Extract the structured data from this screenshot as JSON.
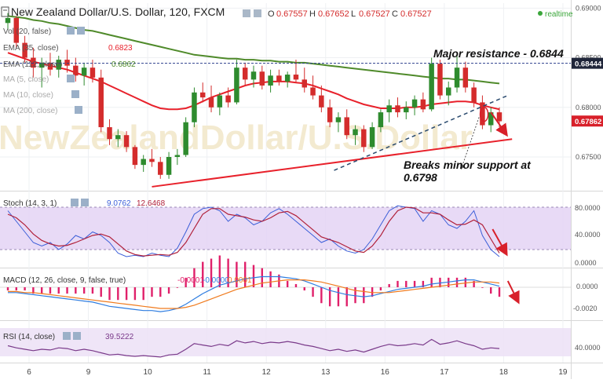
{
  "header": {
    "symbol": "New Zealand Dollar/U.S. Dollar, 120, FXCM",
    "ohlc_labels": [
      "O",
      "H",
      "L",
      "C"
    ],
    "ohlc_values": [
      "0.67557",
      "0.67652",
      "0.67527",
      "0.67527"
    ],
    "realtime_label": "realtime"
  },
  "legend": [
    {
      "label": "Vol (20, false)",
      "value": ""
    },
    {
      "label": "EMA (35, close)",
      "value": "0.6823"
    },
    {
      "label": "EMA (112, close)",
      "value": "0.6862"
    },
    {
      "label": "MA (5, close)",
      "value": ""
    },
    {
      "label": "MA (10, close)",
      "value": ""
    },
    {
      "label": "MA (200, close)",
      "value": ""
    }
  ],
  "annotations": {
    "resistance": "Major resistance - 0.6844",
    "support_line1": "Breaks minor support at",
    "support_line2": "0.6798"
  },
  "watermark": "NewZealandDollar/U.S.Dollar",
  "price_badges": {
    "resistance": "0.68444",
    "last": "0.67862"
  },
  "panes": {
    "stoch": {
      "label": "Stoch (14, 3, 1)",
      "values": [
        "9.0762",
        "12.6468"
      ],
      "ticks": [
        "80.0000",
        "40.0000",
        "0.0000"
      ]
    },
    "macd": {
      "label": "MACD (12, 26, close, 9, false, true)",
      "values": [
        "-0.0001",
        "-0.0000",
        "0.0001"
      ],
      "ticks": [
        "0.0000",
        "-0.0020"
      ]
    },
    "rsi": {
      "label": "RSI (14, close)",
      "values": [
        "39.5222"
      ],
      "ticks": [
        "40.0000"
      ]
    }
  },
  "colors": {
    "candle_up": "#2e8b2e",
    "candle_down": "#d42c2c",
    "ema35": "#e8212b",
    "ema112": "#4f8a2a",
    "trendline": "#e8212b",
    "support": "#2a4a6e",
    "stoch_band": "#e4d4f4",
    "rsi_band": "#ece0f6",
    "stoch_k": "#3b5ed8",
    "stoch_d": "#b0203a",
    "macd_line": "#2f7de0",
    "signal_line": "#f07b1e",
    "hist": "#e0206a",
    "rsi_line": "#7a3a8a",
    "badge_bg": "#d8202a"
  },
  "chart_data": {
    "type": "candlestick",
    "x_ticks": [
      "6",
      "9",
      "10",
      "11",
      "12",
      "13",
      "16",
      "17",
      "18",
      "19"
    ],
    "y_ticks": [
      "0.69000",
      "0.68500",
      "0.68000",
      "0.67500"
    ],
    "ylim": [
      0.6716,
      0.6905
    ],
    "resistance_level": 0.68444,
    "last_price": 0.67862,
    "candles": [
      [
        0.6885,
        0.6895,
        0.6878,
        0.689
      ],
      [
        0.689,
        0.6892,
        0.686,
        0.6865
      ],
      [
        0.6865,
        0.6872,
        0.6845,
        0.685
      ],
      [
        0.685,
        0.686,
        0.683,
        0.684
      ],
      [
        0.684,
        0.685,
        0.682,
        0.6845
      ],
      [
        0.6845,
        0.6855,
        0.6832,
        0.6838
      ],
      [
        0.6838,
        0.6852,
        0.683,
        0.6848
      ],
      [
        0.6848,
        0.6858,
        0.6835,
        0.6842
      ],
      [
        0.6842,
        0.685,
        0.6826,
        0.6832
      ],
      [
        0.6832,
        0.6845,
        0.6822,
        0.684
      ],
      [
        0.684,
        0.6848,
        0.6825,
        0.683
      ],
      [
        0.683,
        0.6838,
        0.6775,
        0.678
      ],
      [
        0.678,
        0.6788,
        0.6762,
        0.6768
      ],
      [
        0.6768,
        0.6778,
        0.676,
        0.6772
      ],
      [
        0.6772,
        0.6776,
        0.6755,
        0.676
      ],
      [
        0.676,
        0.6762,
        0.6738,
        0.6742
      ],
      [
        0.6742,
        0.6752,
        0.6735,
        0.6748
      ],
      [
        0.6748,
        0.6758,
        0.674,
        0.6745
      ],
      [
        0.6745,
        0.675,
        0.6728,
        0.6732
      ],
      [
        0.6732,
        0.6755,
        0.6728,
        0.675
      ],
      [
        0.675,
        0.6758,
        0.6742,
        0.6752
      ],
      [
        0.6752,
        0.679,
        0.675,
        0.6785
      ],
      [
        0.6785,
        0.682,
        0.678,
        0.6815
      ],
      [
        0.6815,
        0.6825,
        0.6805,
        0.681
      ],
      [
        0.681,
        0.6822,
        0.6795,
        0.68
      ],
      [
        0.68,
        0.6815,
        0.6792,
        0.6812
      ],
      [
        0.6812,
        0.682,
        0.68,
        0.6805
      ],
      [
        0.6805,
        0.6848,
        0.6803,
        0.684
      ],
      [
        0.684,
        0.6845,
        0.6822,
        0.6828
      ],
      [
        0.6828,
        0.6842,
        0.682,
        0.6836
      ],
      [
        0.6836,
        0.6842,
        0.6818,
        0.6822
      ],
      [
        0.6822,
        0.6838,
        0.6815,
        0.6832
      ],
      [
        0.6832,
        0.6838,
        0.6822,
        0.6826
      ],
      [
        0.6826,
        0.6836,
        0.682,
        0.6833
      ],
      [
        0.6833,
        0.6848,
        0.6825,
        0.6828
      ],
      [
        0.6828,
        0.684,
        0.6815,
        0.682
      ],
      [
        0.682,
        0.6832,
        0.6808,
        0.6812
      ],
      [
        0.6812,
        0.6822,
        0.6795,
        0.68
      ],
      [
        0.68,
        0.6808,
        0.678,
        0.6785
      ],
      [
        0.6785,
        0.6795,
        0.6775,
        0.679
      ],
      [
        0.679,
        0.6798,
        0.6768,
        0.6772
      ],
      [
        0.6772,
        0.6782,
        0.6762,
        0.6778
      ],
      [
        0.6778,
        0.6782,
        0.6755,
        0.676
      ],
      [
        0.676,
        0.6785,
        0.6758,
        0.678
      ],
      [
        0.678,
        0.6798,
        0.6775,
        0.6795
      ],
      [
        0.6795,
        0.6808,
        0.6785,
        0.6802
      ],
      [
        0.6802,
        0.681,
        0.679,
        0.6795
      ],
      [
        0.6795,
        0.6806,
        0.6788,
        0.68
      ],
      [
        0.68,
        0.6812,
        0.6792,
        0.6808
      ],
      [
        0.6808,
        0.6815,
        0.6795,
        0.6798
      ],
      [
        0.6798,
        0.685,
        0.6796,
        0.6844
      ],
      [
        0.6844,
        0.6848,
        0.6808,
        0.6812
      ],
      [
        0.6812,
        0.6826,
        0.6802,
        0.682
      ],
      [
        0.682,
        0.6852,
        0.6815,
        0.684
      ],
      [
        0.684,
        0.6846,
        0.6815,
        0.682
      ],
      [
        0.682,
        0.6825,
        0.68,
        0.6805
      ],
      [
        0.6805,
        0.6812,
        0.6778,
        0.6782
      ],
      [
        0.6782,
        0.68,
        0.6775,
        0.6795
      ],
      [
        0.6795,
        0.68,
        0.678,
        0.6786
      ]
    ],
    "ema35": [
      0.6855,
      0.6852,
      0.6849,
      0.6846,
      0.6844,
      0.6842,
      0.684,
      0.6838,
      0.6835,
      0.6832,
      0.6829,
      0.6826,
      0.6822,
      0.6818,
      0.6814,
      0.681,
      0.6806,
      0.6802,
      0.6799,
      0.6798,
      0.6798,
      0.6799,
      0.6802,
      0.6806,
      0.681,
      0.6813,
      0.6816,
      0.6819,
      0.6822,
      0.6824,
      0.6825,
      0.6826,
      0.6826,
      0.6826,
      0.6825,
      0.6824,
      0.6822,
      0.6819,
      0.6816,
      0.6813,
      0.6809,
      0.6806,
      0.6803,
      0.6801,
      0.6799,
      0.6799,
      0.6799,
      0.68,
      0.68,
      0.6801,
      0.6803,
      0.6804,
      0.6805,
      0.6806,
      0.6806,
      0.6805,
      0.6802,
      0.68,
      0.6798
    ],
    "ema112": [
      0.6892,
      0.6891,
      0.689,
      0.6888,
      0.6887,
      0.6885,
      0.6884,
      0.6882,
      0.688,
      0.6878,
      0.6877,
      0.6875,
      0.6873,
      0.6871,
      0.6869,
      0.6867,
      0.6865,
      0.6863,
      0.6861,
      0.6859,
      0.6857,
      0.6855,
      0.6853,
      0.6852,
      0.6851,
      0.685,
      0.6849,
      0.6849,
      0.6848,
      0.6848,
      0.6847,
      0.6847,
      0.6846,
      0.6846,
      0.6845,
      0.6845,
      0.6844,
      0.6843,
      0.6842,
      0.6841,
      0.684,
      0.6839,
      0.6838,
      0.6837,
      0.6836,
      0.6835,
      0.6834,
      0.6833,
      0.6832,
      0.6831,
      0.683,
      0.6829,
      0.6829,
      0.6828,
      0.6828,
      0.6827,
      0.6826,
      0.6825,
      0.6824
    ],
    "stoch_k": [
      75,
      60,
      45,
      30,
      25,
      30,
      20,
      28,
      40,
      35,
      45,
      40,
      30,
      15,
      10,
      12,
      10,
      15,
      12,
      10,
      22,
      45,
      70,
      78,
      80,
      75,
      60,
      70,
      65,
      55,
      60,
      72,
      78,
      70,
      60,
      50,
      40,
      30,
      35,
      25,
      18,
      15,
      20,
      35,
      55,
      75,
      82,
      80,
      78,
      60,
      75,
      70,
      55,
      50,
      60,
      75,
      40,
      20,
      10
    ],
    "stoch_d": [
      70,
      65,
      55,
      42,
      33,
      28,
      25,
      26,
      30,
      35,
      40,
      42,
      38,
      28,
      18,
      13,
      11,
      12,
      13,
      12,
      16,
      30,
      50,
      70,
      78,
      78,
      70,
      68,
      66,
      62,
      60,
      65,
      72,
      74,
      68,
      58,
      48,
      38,
      34,
      30,
      24,
      18,
      16,
      25,
      40,
      60,
      75,
      80,
      79,
      72,
      72,
      70,
      62,
      55,
      56,
      62,
      55,
      35,
      15
    ],
    "macd": [
      -0.0005,
      -0.0005,
      -0.0006,
      -0.0007,
      -0.0008,
      -0.0009,
      -0.001,
      -0.0011,
      -0.0012,
      -0.0013,
      -0.0014,
      -0.0016,
      -0.0018,
      -0.0019,
      -0.002,
      -0.0021,
      -0.0022,
      -0.0022,
      -0.0023,
      -0.0022,
      -0.002,
      -0.0016,
      -0.0011,
      -0.0006,
      -0.0002,
      0.0002,
      0.0004,
      0.0006,
      0.0008,
      0.0009,
      0.001,
      0.001,
      0.001,
      0.0009,
      0.0008,
      0.0006,
      0.0003,
      0.0,
      -0.0003,
      -0.0005,
      -0.0007,
      -0.0008,
      -0.0009,
      -0.0008,
      -0.0006,
      -0.0004,
      -0.0002,
      -0.0001,
      0.0,
      0.0001,
      0.0003,
      0.0004,
      0.0005,
      0.0006,
      0.0007,
      0.0007,
      0.0005,
      0.0003,
      0.0001
    ],
    "macd_signal": [
      -0.0004,
      -0.0004,
      -0.0005,
      -0.0005,
      -0.0006,
      -0.0007,
      -0.0008,
      -0.0009,
      -0.001,
      -0.0011,
      -0.0012,
      -0.0013,
      -0.0014,
      -0.0015,
      -0.0016,
      -0.0017,
      -0.0018,
      -0.0019,
      -0.002,
      -0.002,
      -0.002,
      -0.0019,
      -0.0017,
      -0.0014,
      -0.0011,
      -0.0008,
      -0.0005,
      -0.0002,
      0.0,
      0.0002,
      0.0004,
      0.0005,
      0.0006,
      0.0007,
      0.0007,
      0.0007,
      0.0006,
      0.0005,
      0.0003,
      0.0001,
      -0.0001,
      -0.0003,
      -0.0004,
      -0.0005,
      -0.0005,
      -0.0005,
      -0.0004,
      -0.0003,
      -0.0002,
      -0.0001,
      0.0,
      0.0001,
      0.0002,
      0.0003,
      0.0004,
      0.0005,
      0.0005,
      0.0005,
      0.0004
    ],
    "rsi": [
      45,
      42,
      40,
      38,
      40,
      39,
      42,
      41,
      38,
      40,
      38,
      35,
      32,
      33,
      31,
      30,
      31,
      30,
      29,
      32,
      33,
      40,
      48,
      46,
      44,
      47,
      45,
      52,
      49,
      51,
      48,
      50,
      49,
      51,
      49,
      46,
      44,
      41,
      38,
      40,
      37,
      39,
      36,
      40,
      44,
      47,
      45,
      46,
      48,
      46,
      54,
      47,
      49,
      52,
      48,
      45,
      40,
      42,
      41
    ],
    "rsi_band": [
      30,
      70
    ]
  }
}
